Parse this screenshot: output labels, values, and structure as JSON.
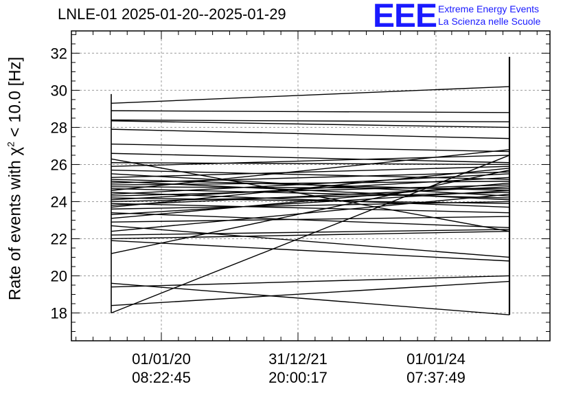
{
  "chart_data": {
    "type": "line",
    "title": "LNLE-01 2025-01-20--2025-01-29",
    "ylabel_prefix": "Rate of events with ",
    "ylabel_chi": "χ",
    "ylabel_sup": "2",
    "ylabel_suffix": " < 10.0 [Hz]",
    "ylim": [
      16.5,
      33.2
    ],
    "y_ticks": [
      18,
      20,
      22,
      24,
      26,
      28,
      30,
      32
    ],
    "x_ticks": [
      {
        "date": "01/01/20",
        "time": "08:22:45"
      },
      {
        "date": "31/12/21",
        "time": "20:00:17"
      },
      {
        "date": "01/01/24",
        "time": "07:37:49"
      }
    ],
    "grid": true,
    "x_start": 0,
    "x_end": 1,
    "left_vertical_span": [
      18.0,
      29.8
    ],
    "right_vertical_span": [
      17.9,
      31.8
    ],
    "segments": [
      [
        29.3,
        30.2
      ],
      [
        28.9,
        28.8
      ],
      [
        28.4,
        28.3
      ],
      [
        28.35,
        28.0
      ],
      [
        27.9,
        27.4
      ],
      [
        27.1,
        26.7
      ],
      [
        26.6,
        26.1
      ],
      [
        26.3,
        22.4
      ],
      [
        26.1,
        26.0
      ],
      [
        25.9,
        26.5
      ],
      [
        25.7,
        25.2
      ],
      [
        25.5,
        24.3
      ],
      [
        25.3,
        25.9
      ],
      [
        25.2,
        24.6
      ],
      [
        25.1,
        24.1
      ],
      [
        25.0,
        25.6
      ],
      [
        24.9,
        25.1
      ],
      [
        24.8,
        24.7
      ],
      [
        24.7,
        24.2
      ],
      [
        24.6,
        26.8
      ],
      [
        24.5,
        23.7
      ],
      [
        24.4,
        25.5
      ],
      [
        24.3,
        24.9
      ],
      [
        24.2,
        23.9
      ],
      [
        24.1,
        25.3
      ],
      [
        24.0,
        24.5
      ],
      [
        23.9,
        23.4
      ],
      [
        23.8,
        24.8
      ],
      [
        23.7,
        25.8
      ],
      [
        23.6,
        24.0
      ],
      [
        23.4,
        22.6
      ],
      [
        23.3,
        24.6
      ],
      [
        23.1,
        25.0
      ],
      [
        22.9,
        23.2
      ],
      [
        22.7,
        21.0
      ],
      [
        22.4,
        24.4
      ],
      [
        22.2,
        22.5
      ],
      [
        22.0,
        22.4
      ],
      [
        21.9,
        20.8
      ],
      [
        21.2,
        25.7
      ],
      [
        19.6,
        17.9
      ],
      [
        19.4,
        20.0
      ],
      [
        18.4,
        19.7
      ],
      [
        18.0,
        26.5
      ]
    ]
  },
  "logo": {
    "letters": "EEE",
    "line1": "Extreme Energy Events",
    "line2": "La Scienza nelle Scuole"
  }
}
